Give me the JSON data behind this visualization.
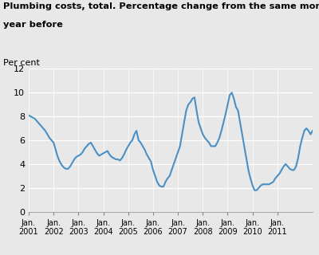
{
  "title_line1": "Plumbing costs, total. Percentage change from the same month one",
  "title_line2": "year before",
  "ylabel": "Per cent",
  "ylim": [
    0,
    12
  ],
  "yticks": [
    0,
    2,
    4,
    6,
    8,
    10,
    12
  ],
  "x_labels": [
    "Jan.\n2001",
    "Jan.\n2002",
    "Jan.\n2003",
    "Jan.\n2004",
    "Jan.\n2005",
    "Jan.\n2006",
    "Jan.\n2007",
    "Jan.\n2008",
    "Jan.\n2009",
    "Jan.\n2010",
    "Jan.\n2011"
  ],
  "line_color": "#4a90c4",
  "background_color": "#e8e8e8",
  "plot_bg_color": "#e8e8e8",
  "months_data": [
    8.1,
    8.0,
    7.9,
    7.8,
    7.6,
    7.4,
    7.2,
    7.0,
    6.8,
    6.5,
    6.2,
    6.0,
    5.8,
    5.2,
    4.6,
    4.2,
    3.9,
    3.7,
    3.6,
    3.6,
    3.8,
    4.1,
    4.4,
    4.6,
    4.7,
    4.8,
    5.0,
    5.3,
    5.5,
    5.7,
    5.8,
    5.5,
    5.2,
    4.9,
    4.7,
    4.8,
    4.9,
    5.0,
    5.1,
    4.8,
    4.6,
    4.5,
    4.4,
    4.4,
    4.3,
    4.5,
    4.8,
    5.2,
    5.5,
    5.8,
    6.0,
    6.5,
    6.8,
    6.0,
    5.8,
    5.5,
    5.2,
    4.8,
    4.5,
    4.2,
    3.5,
    3.0,
    2.5,
    2.2,
    2.1,
    2.1,
    2.5,
    2.8,
    3.0,
    3.5,
    4.0,
    4.5,
    5.0,
    5.5,
    6.5,
    7.5,
    8.5,
    9.0,
    9.2,
    9.5,
    9.6,
    8.5,
    7.5,
    7.0,
    6.5,
    6.2,
    6.0,
    5.8,
    5.5,
    5.5,
    5.5,
    5.8,
    6.2,
    6.8,
    7.5,
    8.2,
    9.0,
    9.8,
    10.0,
    9.5,
    8.8,
    8.5,
    7.5,
    6.5,
    5.5,
    4.5,
    3.5,
    2.8,
    2.2,
    1.8,
    1.8,
    2.0,
    2.2,
    2.3,
    2.3,
    2.3,
    2.3,
    2.4,
    2.5,
    2.8,
    3.0,
    3.2,
    3.5,
    3.8,
    4.0,
    3.8,
    3.6,
    3.5,
    3.5,
    3.8,
    4.5,
    5.5,
    6.2,
    6.8,
    7.0,
    6.8,
    6.5,
    6.8
  ]
}
